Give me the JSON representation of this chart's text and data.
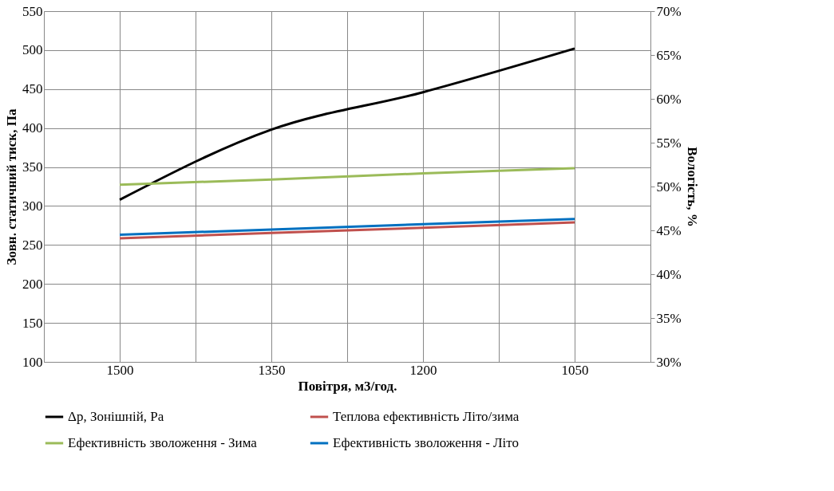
{
  "chart_data": {
    "type": "line",
    "xlabel": "Повітря, м3/год.",
    "ylabel": "Зовн. статичний тиск, Па",
    "y2label": "Вологість,  %",
    "x": [
      1500,
      1350,
      1200,
      1050
    ],
    "xlim": [
      1575,
      975
    ],
    "xticks": [
      {
        "value": 1575,
        "label": null
      },
      1500,
      {
        "value": 1425,
        "label": null
      },
      1350,
      {
        "value": 1275,
        "label": null
      },
      1200,
      {
        "value": 1125,
        "label": null
      },
      1050,
      {
        "value": 975,
        "label": null
      }
    ],
    "ylim": [
      100,
      550
    ],
    "yticks": [
      100,
      150,
      200,
      250,
      300,
      350,
      400,
      450,
      500,
      550
    ],
    "y2lim": [
      30,
      70
    ],
    "y2ticks": [
      {
        "value": 30,
        "label": "30%"
      },
      {
        "value": 35,
        "label": "35%"
      },
      {
        "value": 40,
        "label": "40%"
      },
      {
        "value": 45,
        "label": "45%"
      },
      {
        "value": 50,
        "label": "50%"
      },
      {
        "value": 55,
        "label": "55%"
      },
      {
        "value": 60,
        "label": "60%"
      },
      {
        "value": 65,
        "label": "65%"
      },
      {
        "value": 70,
        "label": "70%"
      }
    ],
    "series": [
      {
        "name": "Δp, Зонішній, Pa",
        "color": "#000000",
        "values": [
          308,
          398,
          446,
          502
        ]
      },
      {
        "name": "Теплова ефективність Літо/зима",
        "color": "#c0504d",
        "axis": "y2",
        "values": [
          44.1,
          44.7,
          45.3,
          45.9
        ]
      },
      {
        "name": "Ефективність зволоження - Зима",
        "color": "#9bbb59",
        "axis": "y2",
        "values": [
          50.2,
          50.8,
          51.5,
          52.1
        ]
      },
      {
        "name": "Ефективність зволоження - Літо",
        "color": "#0070c0",
        "axis": "y2",
        "values": [
          44.5,
          45.1,
          45.7,
          46.3
        ]
      }
    ],
    "grid": true,
    "legend": "bottom",
    "marker": "none",
    "line_style": "solid"
  }
}
